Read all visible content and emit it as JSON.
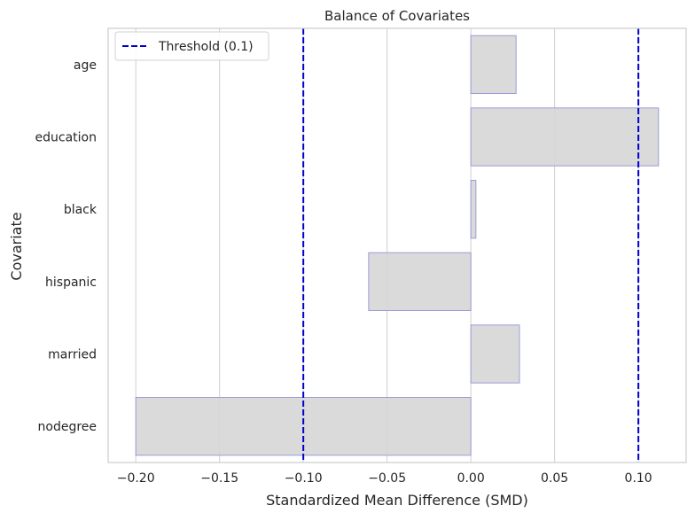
{
  "chart_data": {
    "type": "bar",
    "orientation": "horizontal",
    "title": "Balance of Covariates",
    "xlabel": "Standardized Mean Difference (SMD)",
    "ylabel": "Covariate",
    "categories": [
      "age",
      "education",
      "black",
      "hispanic",
      "married",
      "nodegree"
    ],
    "values": [
      0.027,
      0.112,
      0.003,
      -0.061,
      0.029,
      -0.2
    ],
    "xlim": [
      -0.2165,
      0.1285
    ],
    "xticks": [
      -0.2,
      -0.15,
      -0.1,
      -0.05,
      0.0,
      0.05,
      0.1
    ],
    "xtick_labels": [
      "−0.20",
      "−0.15",
      "−0.10",
      "−0.05",
      "0.00",
      "0.05",
      "0.10"
    ],
    "thresholds": [
      -0.1,
      0.1
    ],
    "legend": {
      "position": "upper-left",
      "entries": [
        {
          "label": "Threshold (0.1)",
          "color": "#0000cc",
          "style": "dashed"
        }
      ]
    },
    "grid": "vertical",
    "colors": {
      "bar_fill": "#d6d6d6",
      "bar_edge": "#9b9bd9",
      "threshold_line": "#0000cc",
      "grid": "#cfcfcf",
      "axes_edge": "#cccccc"
    }
  }
}
